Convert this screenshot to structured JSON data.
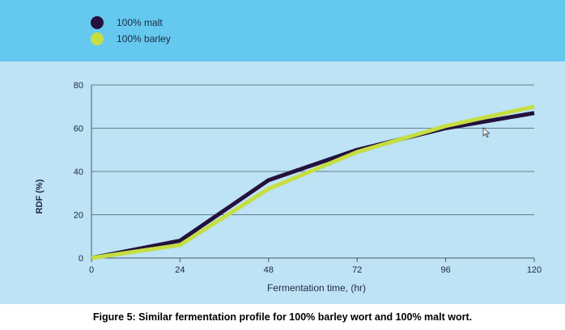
{
  "chart_data": {
    "type": "line",
    "xlabel": "Fermentation time, (hr)",
    "ylabel": "RDF (%)",
    "x": [
      0,
      24,
      48,
      72,
      96,
      120
    ],
    "xticks": [
      "0",
      "24",
      "48",
      "72",
      "96",
      "120"
    ],
    "yticks": [
      "0",
      "20",
      "40",
      "60",
      "80"
    ],
    "xlim": [
      0,
      120
    ],
    "ylim": [
      0,
      80
    ],
    "grid": "horizontal",
    "legend_position": "top-left",
    "series": [
      {
        "name": "100% malt",
        "color": "#24113d",
        "values": [
          0,
          8,
          36,
          50,
          60,
          67
        ]
      },
      {
        "name": "100% barley",
        "color": "#c6de42",
        "values": [
          0,
          6,
          32,
          49,
          61,
          70
        ]
      }
    ]
  },
  "caption": "Figure 5: Similar fermentation profile for 100% barley wort and 100% malt wort.",
  "colors": {
    "legend_band": "#64c8ef",
    "plot_band": "#bde3f5",
    "axis": "#4a5a6a"
  },
  "icons": {
    "cursor": "mouse-pointer-icon"
  }
}
